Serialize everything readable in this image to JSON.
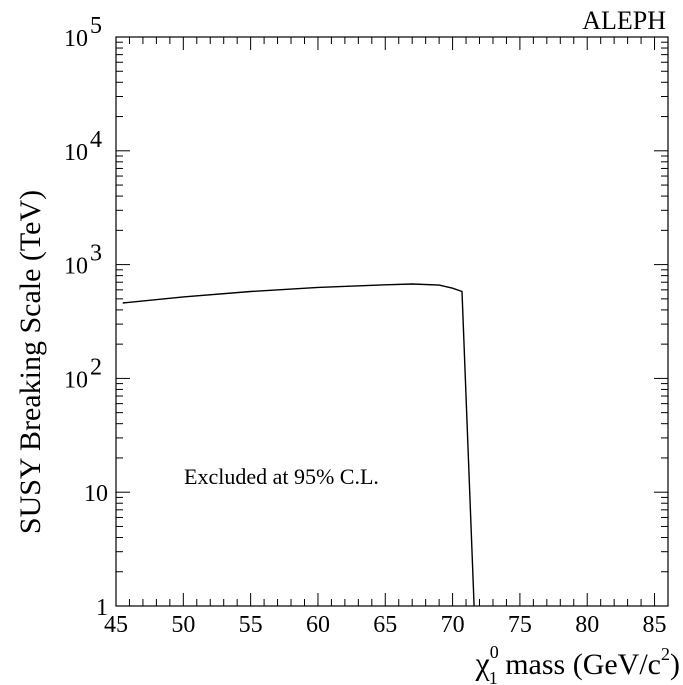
{
  "chart_data": {
    "type": "line",
    "experiment_label": "ALEPH",
    "annotation": "Excluded at 95% C.L.",
    "ylabel": "SUSY Breaking Scale (TeV)",
    "xlabel": {
      "symbol": "χ",
      "superscript": "0",
      "subscript": "1",
      "text": " mass (GeV/c",
      "power": "2",
      "close": ")"
    },
    "xlim": [
      45,
      86
    ],
    "ylim": [
      1,
      100000
    ],
    "yscale": "log",
    "grid": false,
    "x_ticks": [
      45,
      50,
      55,
      60,
      65,
      70,
      75,
      80,
      85
    ],
    "y_ticks": [
      {
        "value": 1,
        "label": "1",
        "base": "",
        "exp": ""
      },
      {
        "value": 10,
        "label": "10",
        "base": "",
        "exp": ""
      },
      {
        "value": 100,
        "label": "",
        "base": "10",
        "exp": "2"
      },
      {
        "value": 1000,
        "label": "",
        "base": "10",
        "exp": "3"
      },
      {
        "value": 10000,
        "label": "",
        "base": "10",
        "exp": "4"
      },
      {
        "value": 100000,
        "label": "",
        "base": "10",
        "exp": "5"
      }
    ],
    "series": [
      {
        "points": [
          {
            "x": 45.5,
            "y": 460
          },
          {
            "x": 50,
            "y": 520
          },
          {
            "x": 55,
            "y": 580
          },
          {
            "x": 60,
            "y": 630
          },
          {
            "x": 65,
            "y": 665
          },
          {
            "x": 67,
            "y": 675
          },
          {
            "x": 69,
            "y": 660
          },
          {
            "x": 70,
            "y": 620
          },
          {
            "x": 70.7,
            "y": 580
          },
          {
            "x": 71.6,
            "y": 1
          }
        ]
      }
    ]
  }
}
